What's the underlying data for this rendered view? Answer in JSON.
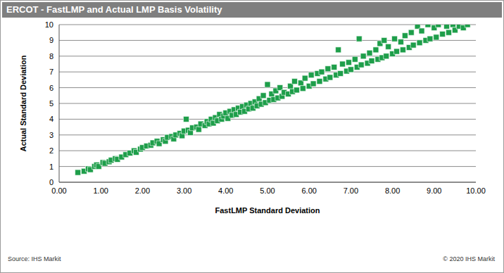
{
  "chart_data": {
    "type": "scatter",
    "title": "ERCOT - FastLMP and Actual LMP Basis Volatility",
    "x_label": "FastLMP Standard Deviation",
    "y_label": "Actual Standard Deviation",
    "source": "Source: IHS Markit",
    "copyright": "© 2020 IHS Markit",
    "color": "#1e9e4a",
    "marker": "square",
    "grid": "y",
    "xlim": [
      0,
      10
    ],
    "ylim": [
      0,
      10
    ],
    "xticks": [
      {
        "value": 0,
        "label": "0.00"
      },
      {
        "value": 1,
        "label": "1.00"
      },
      {
        "value": 2,
        "label": "2.00"
      },
      {
        "value": 3,
        "label": "3.00"
      },
      {
        "value": 4,
        "label": "4.00"
      },
      {
        "value": 5,
        "label": "5.00"
      },
      {
        "value": 6,
        "label": "6.00"
      },
      {
        "value": 7,
        "label": "7.00"
      },
      {
        "value": 8,
        "label": "8.00"
      },
      {
        "value": 9,
        "label": "9.00"
      },
      {
        "value": 10,
        "label": "10.00"
      }
    ],
    "yticks": [
      0,
      1,
      2,
      3,
      4,
      5,
      6,
      7,
      8,
      9,
      10
    ],
    "x": [
      0.45,
      0.6,
      0.7,
      0.75,
      0.85,
      0.9,
      0.95,
      1.05,
      1.1,
      1.2,
      1.25,
      1.35,
      1.4,
      1.5,
      1.6,
      1.7,
      1.8,
      1.85,
      1.95,
      2.0,
      2.1,
      2.2,
      2.25,
      2.35,
      2.4,
      2.5,
      2.55,
      2.6,
      2.7,
      2.75,
      2.8,
      2.9,
      2.95,
      3.0,
      3.05,
      3.1,
      3.15,
      3.2,
      3.3,
      3.35,
      3.4,
      3.5,
      3.55,
      3.6,
      3.65,
      3.7,
      3.75,
      3.8,
      3.85,
      3.9,
      3.95,
      4.0,
      4.05,
      4.1,
      4.15,
      4.2,
      4.25,
      4.3,
      4.35,
      4.4,
      4.45,
      4.5,
      4.55,
      4.6,
      4.65,
      4.7,
      4.75,
      4.8,
      4.85,
      4.9,
      4.95,
      5.0,
      5.05,
      5.1,
      5.15,
      5.2,
      5.25,
      5.3,
      5.35,
      5.4,
      5.5,
      5.55,
      5.6,
      5.65,
      5.7,
      5.8,
      5.85,
      5.9,
      6.0,
      6.05,
      6.1,
      6.2,
      6.25,
      6.3,
      6.4,
      6.45,
      6.5,
      6.6,
      6.65,
      6.7,
      6.75,
      6.8,
      6.9,
      6.95,
      7.0,
      7.1,
      7.15,
      7.2,
      7.25,
      7.3,
      7.4,
      7.45,
      7.5,
      7.6,
      7.65,
      7.7,
      7.75,
      7.8,
      7.85,
      7.9,
      8.0,
      8.05,
      8.1,
      8.2,
      8.25,
      8.3,
      8.4,
      8.45,
      8.5,
      8.6,
      8.65,
      8.7,
      8.8,
      8.85,
      8.9,
      9.0,
      9.05,
      9.1,
      9.2,
      9.3,
      9.35,
      9.45,
      9.5,
      9.6,
      9.7,
      9.8
    ],
    "values": [
      0.62,
      0.7,
      0.85,
      0.8,
      1.0,
      1.1,
      1.0,
      1.25,
      1.2,
      1.3,
      1.4,
      1.5,
      1.45,
      1.6,
      1.75,
      1.85,
      2.0,
      1.9,
      2.1,
      2.2,
      2.3,
      2.35,
      2.5,
      2.6,
      2.45,
      2.7,
      2.6,
      2.85,
      2.9,
      2.75,
      3.0,
      3.1,
      2.95,
      3.25,
      4.0,
      3.3,
      3.15,
      3.45,
      3.5,
      3.35,
      3.7,
      3.6,
      3.85,
      3.7,
      4.0,
      3.75,
      4.1,
      3.9,
      4.3,
      4.0,
      4.2,
      4.4,
      4.05,
      4.5,
      4.25,
      4.6,
      4.3,
      4.7,
      4.45,
      4.8,
      4.5,
      4.9,
      4.65,
      5.0,
      4.7,
      5.1,
      4.85,
      5.3,
      4.95,
      5.5,
      5.05,
      6.2,
      5.2,
      5.6,
      5.25,
      5.8,
      5.35,
      6.0,
      5.45,
      5.7,
      5.6,
      6.1,
      5.75,
      6.4,
      5.85,
      6.3,
      5.95,
      6.6,
      6.1,
      6.8,
      6.25,
      6.9,
      6.4,
      7.0,
      6.55,
      7.2,
      6.65,
      7.3,
      6.8,
      8.4,
      6.9,
      7.5,
      7.05,
      7.6,
      7.15,
      7.8,
      7.3,
      9.1,
      7.45,
      8.0,
      7.55,
      8.2,
      7.7,
      8.4,
      7.8,
      8.8,
      7.9,
      9.0,
      8.0,
      8.6,
      8.15,
      9.1,
      8.3,
      8.9,
      8.4,
      9.3,
      8.55,
      9.5,
      8.7,
      9.9,
      8.85,
      9.6,
      9.0,
      10.0,
      9.1,
      9.8,
      9.2,
      10.0,
      9.4,
      9.9,
      9.5,
      10.0,
      9.65,
      9.9,
      9.8,
      10.0
    ]
  }
}
